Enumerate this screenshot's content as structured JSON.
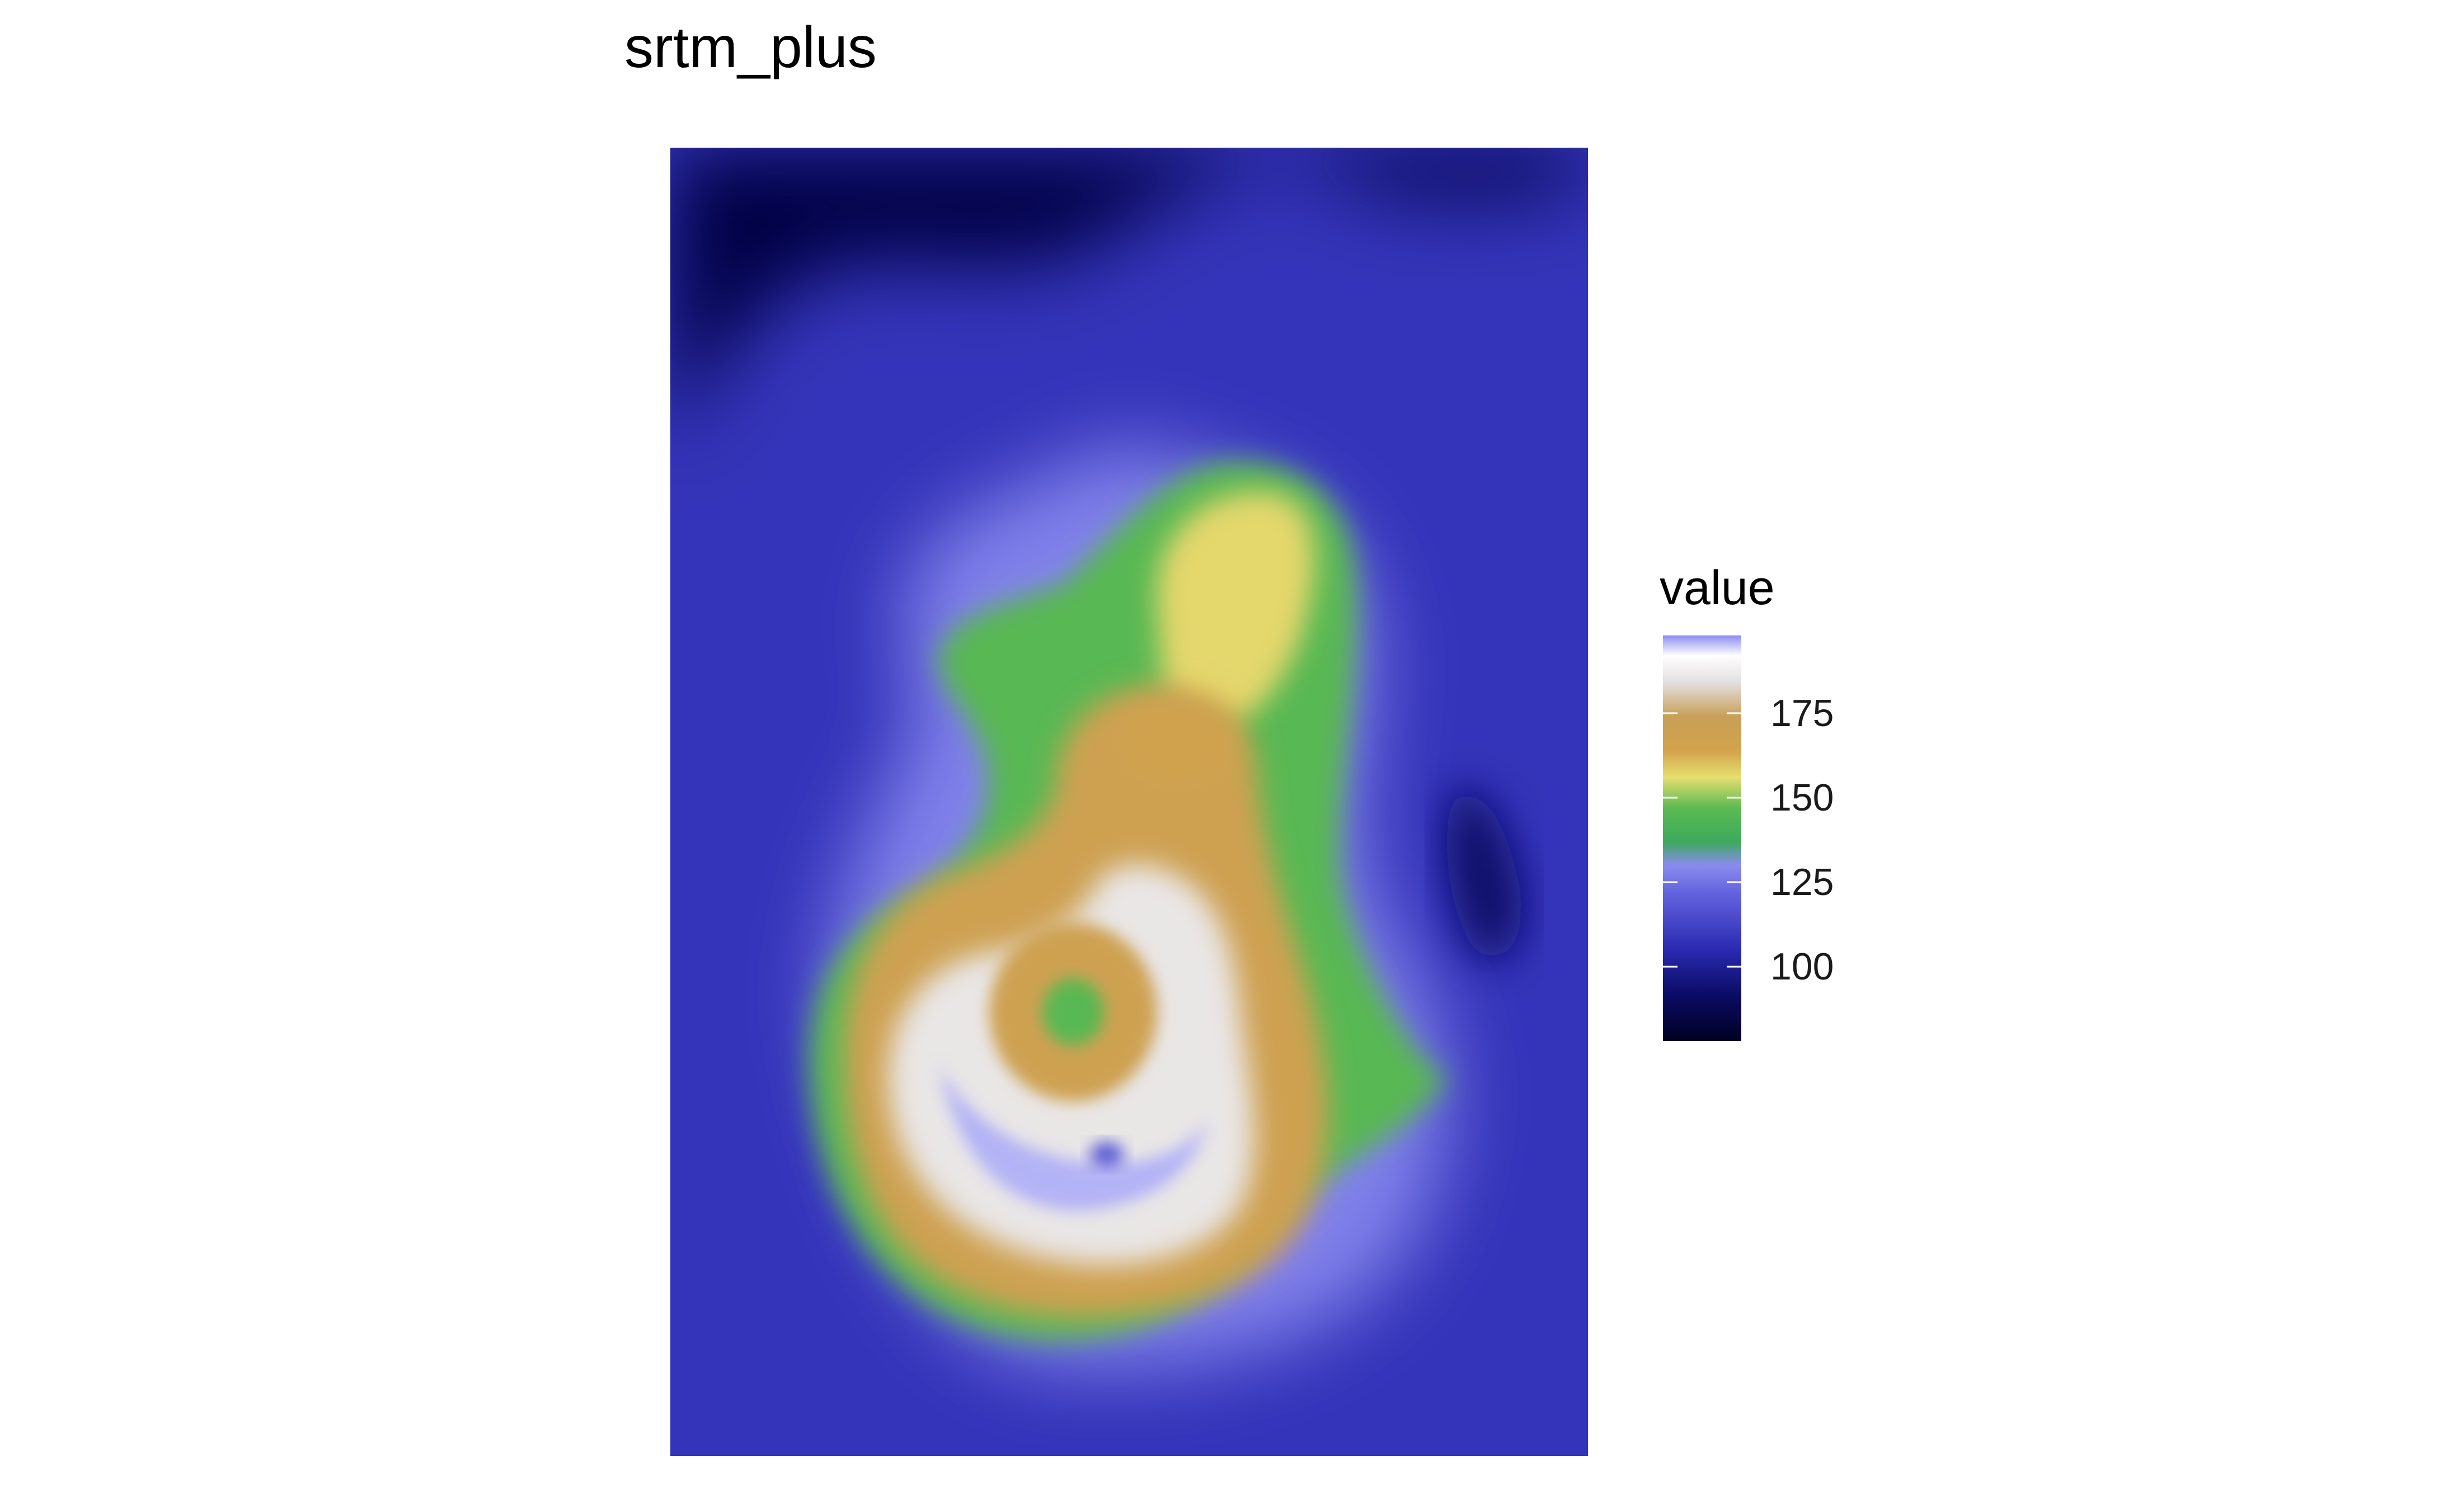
{
  "chart_data": {
    "type": "heatmap",
    "title": "srtm_plus",
    "xlabel": "",
    "ylabel": "",
    "legend": {
      "title": "value",
      "placement": "right",
      "range": [
        78,
        198
      ],
      "ticks": [
        "100",
        "125",
        "150",
        "175"
      ],
      "tick_values": [
        100,
        125,
        150,
        175
      ]
    },
    "colorscale": [
      {
        "value": 78,
        "color": "#000022"
      },
      {
        "value": 92,
        "color": "#0c0c68"
      },
      {
        "value": 105,
        "color": "#2a2ab2"
      },
      {
        "value": 122,
        "color": "#6464e0"
      },
      {
        "value": 130,
        "color": "#8a8aee"
      },
      {
        "value": 137,
        "color": "#3caa5c"
      },
      {
        "value": 147,
        "color": "#5cba52"
      },
      {
        "value": 156,
        "color": "#e6de70"
      },
      {
        "value": 164,
        "color": "#d2a24c"
      },
      {
        "value": 174,
        "color": "#c8a058"
      },
      {
        "value": 184,
        "color": "#e2dede"
      },
      {
        "value": 192,
        "color": "#ffffff"
      },
      {
        "value": 198,
        "color": "#8c8cf2"
      }
    ],
    "surface": {
      "background_value": 108,
      "regions": [
        {
          "name": "outer-halo",
          "value": 128
        },
        {
          "name": "green-plateau",
          "value": 146
        },
        {
          "name": "yellow-peak",
          "value": 157
        },
        {
          "name": "gold-ring",
          "value": 168
        },
        {
          "name": "upper-knob",
          "value": 166
        },
        {
          "name": "white-summit",
          "value": 186
        },
        {
          "name": "inner-gold-ring",
          "value": 168
        },
        {
          "name": "inner-green-pit",
          "value": 146
        },
        {
          "name": "lavender-crescent",
          "value": 196
        },
        {
          "name": "dark-basin-top",
          "value": 85
        },
        {
          "name": "dark-basin-right",
          "value": 92
        }
      ]
    }
  }
}
